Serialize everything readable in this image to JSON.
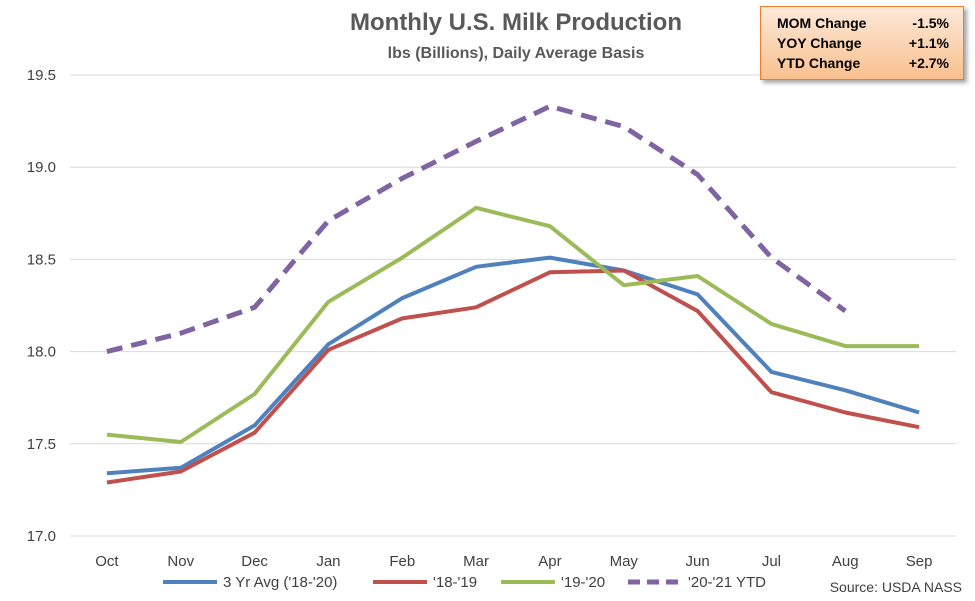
{
  "chart_data": {
    "type": "line",
    "title": "Monthly U.S. Milk Production",
    "subtitle": "lbs (Billions), Daily Average Basis",
    "categories": [
      "Oct",
      "Nov",
      "Dec",
      "Jan",
      "Feb",
      "Mar",
      "Apr",
      "May",
      "Jun",
      "Jul",
      "Aug",
      "Sep"
    ],
    "ylim": [
      17.0,
      19.5
    ],
    "yticks": [
      "17.0",
      "17.5",
      "18.0",
      "18.5",
      "19.0",
      "19.5"
    ],
    "grid": true,
    "legend_position": "bottom",
    "series": [
      {
        "name": "3 Yr Avg ('18-'20)",
        "color": "#4f81bd",
        "style": "solid",
        "values": [
          17.34,
          17.37,
          17.6,
          18.04,
          18.29,
          18.46,
          18.51,
          18.44,
          18.31,
          17.89,
          17.79,
          17.67
        ]
      },
      {
        "name": "'18-'19",
        "color": "#c0504d",
        "style": "solid",
        "values": [
          17.29,
          17.35,
          17.56,
          18.01,
          18.18,
          18.24,
          18.43,
          18.44,
          18.22,
          17.78,
          17.67,
          17.59
        ]
      },
      {
        "name": "'19-'20",
        "color": "#9bbb59",
        "style": "solid",
        "values": [
          17.55,
          17.51,
          17.77,
          18.27,
          18.51,
          18.78,
          18.68,
          18.36,
          18.41,
          18.15,
          18.03,
          18.03
        ]
      },
      {
        "name": "'20-'21 YTD",
        "color": "#8064a2",
        "style": "dashed",
        "values": [
          18.0,
          18.1,
          18.24,
          18.71,
          18.94,
          19.14,
          19.33,
          19.22,
          18.96,
          18.51,
          18.22,
          null
        ]
      }
    ],
    "stats": [
      {
        "label": "MOM Change",
        "value": "-1.5%"
      },
      {
        "label": "YOY Change",
        "value": "+1.1%"
      },
      {
        "label": "YTD Change",
        "value": "+2.7%"
      }
    ],
    "source": "Source: USDA NASS"
  }
}
